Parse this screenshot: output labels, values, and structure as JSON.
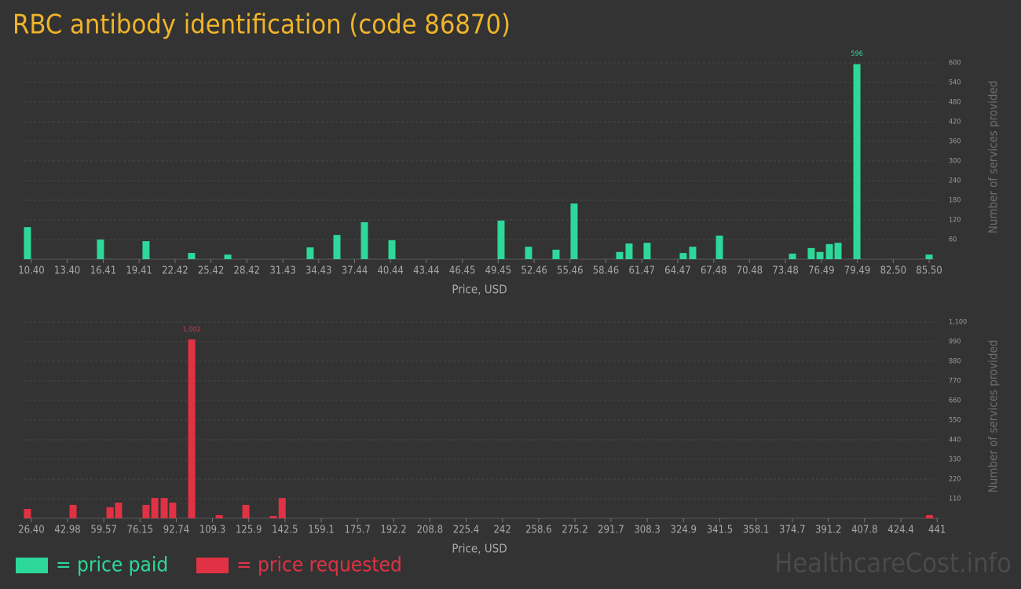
{
  "title": "RBC antibody identification (code 86870)",
  "watermark": "HealthcareCost.info",
  "chart_data": [
    {
      "type": "bar",
      "x_label": "Price, USD",
      "y_label": "Number of services provided",
      "x": [
        10.07,
        16.18,
        19.99,
        23.8,
        26.83,
        33.72,
        35.96,
        38.26,
        40.56,
        49.69,
        51.99,
        54.29,
        55.8,
        59.61,
        60.4,
        61.91,
        64.93,
        65.72,
        67.96,
        74.07,
        75.64,
        76.37,
        77.16,
        77.88,
        79.46,
        85.5
      ],
      "series": [
        {
          "name": "= price paid",
          "color": "#2dd89a",
          "values": [
            98,
            60,
            55,
            19,
            14,
            36,
            74,
            113,
            58,
            118,
            38,
            29,
            170,
            22,
            48,
            50,
            19,
            38,
            72,
            17,
            34,
            22,
            46,
            50,
            596,
            14
          ]
        }
      ],
      "xlim": [
        9.81,
        85.96
      ],
      "ylim": [
        0,
        600
      ],
      "xticks": [
        {
          "value": 10.4,
          "label": "10.40"
        },
        {
          "value": 13.4,
          "label": "13.40"
        },
        16.41,
        19.41,
        22.42,
        25.42,
        28.42,
        31.43,
        34.43,
        37.44,
        40.44,
        43.44,
        46.45,
        49.45,
        52.46,
        55.46,
        58.46,
        61.47,
        64.47,
        67.48,
        70.48,
        73.48,
        76.49,
        79.49,
        {
          "value": 82.5,
          "label": "82.50"
        },
        {
          "value": 85.5,
          "label": "85.50"
        }
      ],
      "yticks": [
        60,
        120,
        180,
        240,
        300,
        360,
        420,
        480,
        540,
        600
      ],
      "grid": true
    },
    {
      "type": "bar",
      "x_label": "Price, USD",
      "y_label": "Number of services provided",
      "x": [
        24.6,
        45.5,
        62.4,
        66.3,
        78.9,
        82.9,
        87.2,
        91.1,
        99.8,
        112.4,
        124.6,
        137.2,
        141.2,
        437.5
      ],
      "series": [
        {
          "name": "= price requested",
          "color": "#e03244",
          "values": [
            53,
            75,
            62,
            88,
            75,
            114,
            114,
            88,
            1002,
            18,
            75,
            13,
            114,
            18
          ],
          "value_labels": [
            null,
            null,
            null,
            null,
            null,
            null,
            null,
            null,
            "1,002",
            null,
            null,
            null,
            null,
            null
          ]
        }
      ],
      "xlim": [
        23.2,
        442
      ],
      "ylim": [
        0,
        1100
      ],
      "xticks": [
        {
          "value": 26.4,
          "label": "26.40"
        },
        42.98,
        59.57,
        76.15,
        92.74,
        109.3,
        125.9,
        142.5,
        159.1,
        175.7,
        192.2,
        208.8,
        225.4,
        242,
        258.6,
        275.2,
        291.7,
        308.3,
        324.9,
        341.5,
        358.1,
        374.7,
        391.2,
        407.8,
        424.4,
        441
      ],
      "yticks": [
        110,
        220,
        330,
        440,
        550,
        660,
        770,
        880,
        990,
        {
          "value": 1100,
          "label": "1,100"
        }
      ],
      "grid": true
    }
  ]
}
